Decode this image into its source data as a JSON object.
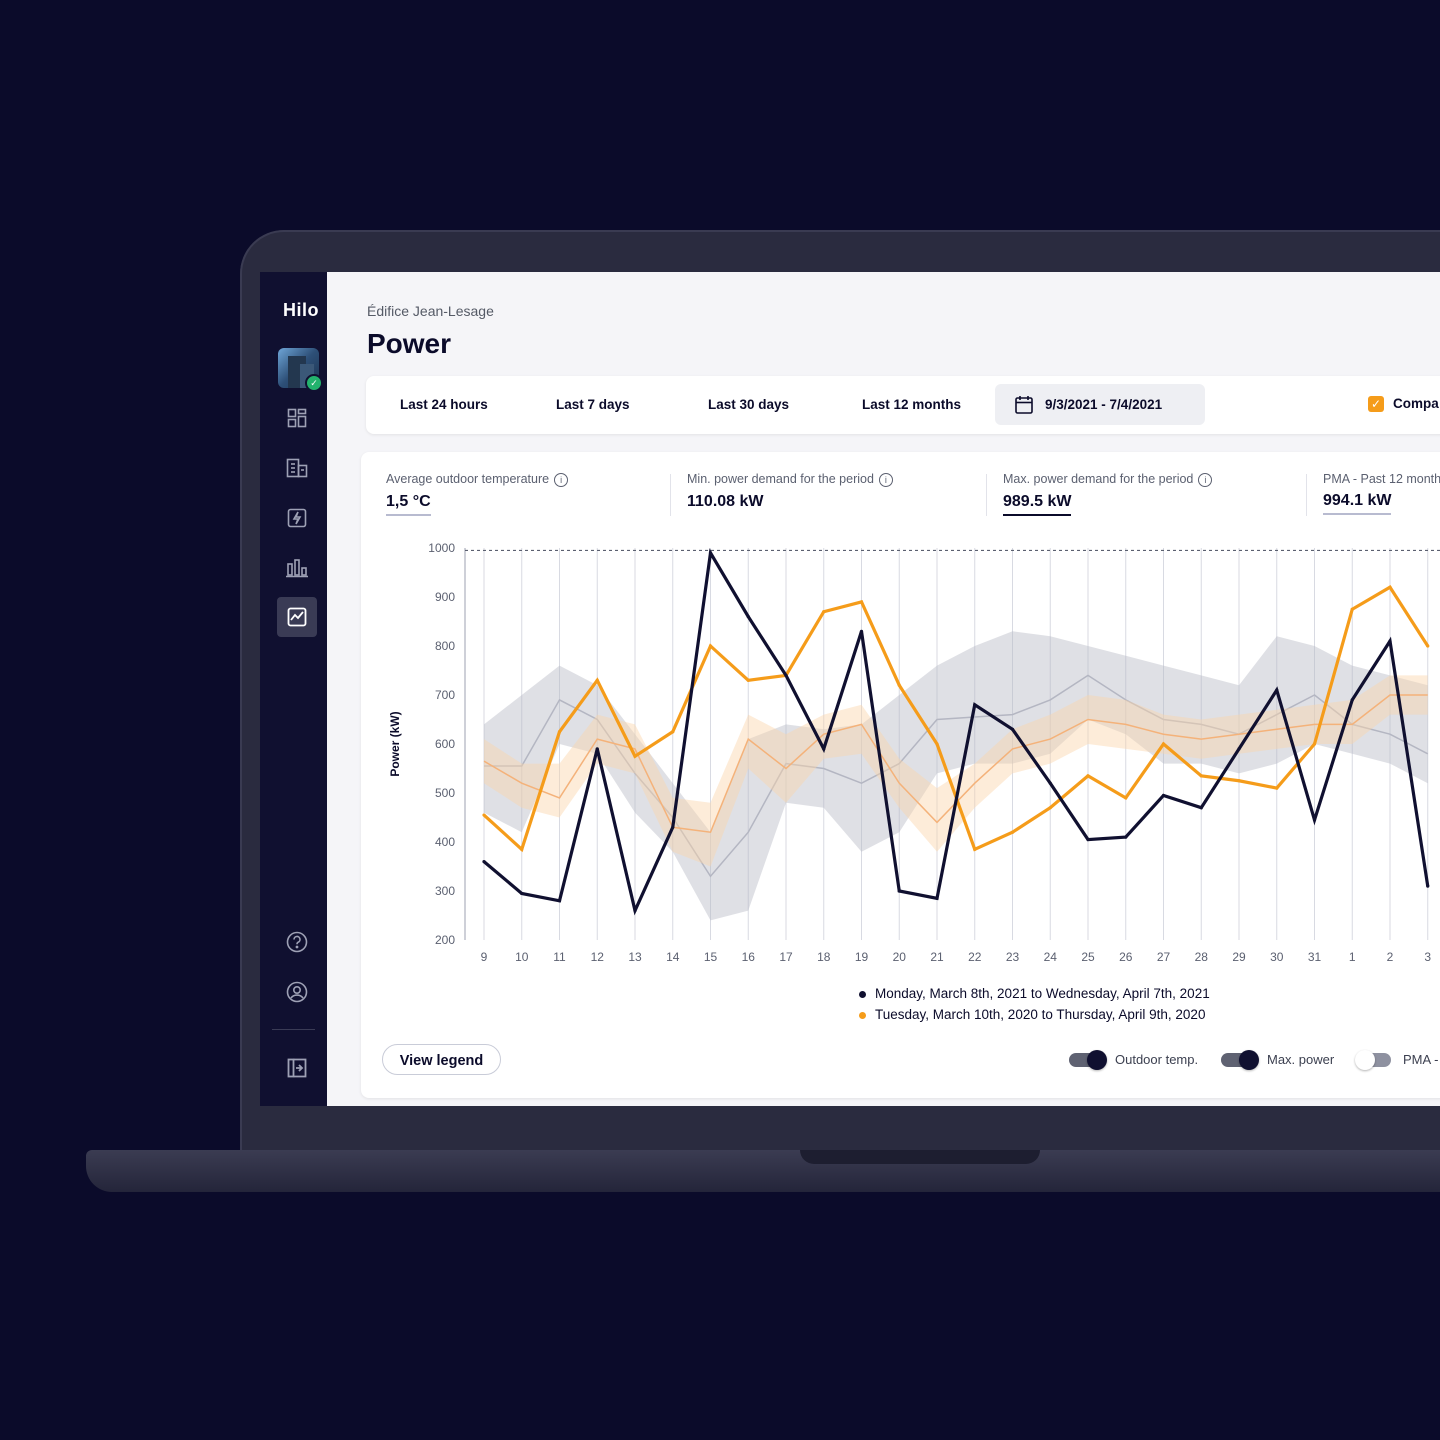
{
  "app": {
    "logo_text": "Hilo",
    "accent_color": "#f59c1a",
    "dark_color": "#101030"
  },
  "sidebar": {
    "items": [
      {
        "name": "dashboard",
        "icon": "grid-icon"
      },
      {
        "name": "buildings",
        "icon": "building-icon"
      },
      {
        "name": "energy",
        "icon": "lightning-icon"
      },
      {
        "name": "reports",
        "icon": "bar-chart-icon"
      },
      {
        "name": "power",
        "icon": "line-chart-icon",
        "active": true
      }
    ],
    "bottom_items": [
      {
        "name": "help",
        "icon": "help-icon"
      },
      {
        "name": "account",
        "icon": "user-icon"
      },
      {
        "name": "logout",
        "icon": "logout-icon"
      }
    ]
  },
  "header": {
    "breadcrumb": "Édifice Jean-Lesage",
    "title": "Power"
  },
  "filters": {
    "tabs": [
      "Last 24 hours",
      "Last 7 days",
      "Last 30 days",
      "Last 12 months"
    ],
    "date_range": "9/3/2021 - 7/4/2021",
    "compare_label": "Compa",
    "compare_checked": true
  },
  "stats": [
    {
      "label": "Average outdoor temperature",
      "value": "1,5 °C"
    },
    {
      "label": "Min. power demand for the period",
      "value": "110.08 kW"
    },
    {
      "label": "Max. power demand for the period",
      "value": "989.5 kW"
    },
    {
      "label": "PMA - Past 12 month",
      "value": "994.1 kW"
    }
  ],
  "chart_data": {
    "type": "line",
    "ylabel": "Power (kW)",
    "xlabel": "",
    "ylim": [
      200,
      1000
    ],
    "yticks": [
      1000,
      900,
      800,
      700,
      600,
      500,
      400,
      300,
      200
    ],
    "x": [
      "9",
      "10",
      "11",
      "12",
      "13",
      "14",
      "15",
      "16",
      "17",
      "18",
      "19",
      "20",
      "21",
      "22",
      "23",
      "24",
      "25",
      "26",
      "27",
      "28",
      "29",
      "30",
      "31",
      "1",
      "2",
      "3"
    ],
    "reference_line": {
      "value": 995,
      "style": "dashed"
    },
    "series": [
      {
        "name": "Monday, March 8th, 2021 to Wednesday, April 7th, 2021",
        "color": "#101030",
        "values": [
          360,
          295,
          280,
          590,
          260,
          430,
          990,
          860,
          740,
          590,
          830,
          300,
          285,
          680,
          630,
          520,
          405,
          410,
          495,
          470,
          590,
          710,
          445,
          690,
          810,
          310
        ]
      },
      {
        "name": "Tuesday, March 10th, 2020 to Thursday, April 9th, 2020",
        "color": "#f59c1a",
        "values": [
          455,
          385,
          625,
          730,
          575,
          625,
          800,
          730,
          740,
          870,
          890,
          720,
          600,
          385,
          420,
          470,
          535,
          490,
          600,
          535,
          525,
          510,
          600,
          875,
          920,
          800
        ]
      }
    ],
    "bands": [
      {
        "color": "#b8bac6",
        "center": [
          555,
          555,
          690,
          650,
          540,
          450,
          330,
          420,
          560,
          550,
          520,
          560,
          650,
          655,
          660,
          690,
          740,
          690,
          650,
          640,
          620,
          660,
          700,
          640,
          620,
          580
        ],
        "upper": [
          640,
          700,
          760,
          720,
          620,
          520,
          420,
          610,
          640,
          630,
          640,
          700,
          760,
          800,
          830,
          820,
          800,
          780,
          760,
          740,
          720,
          820,
          800,
          760,
          740,
          720
        ],
        "lower": [
          460,
          420,
          600,
          580,
          460,
          380,
          240,
          260,
          480,
          470,
          380,
          420,
          540,
          560,
          560,
          580,
          650,
          620,
          560,
          560,
          540,
          560,
          600,
          580,
          560,
          520
        ]
      },
      {
        "color": "#fbd5ab",
        "center": [
          565,
          520,
          490,
          610,
          590,
          430,
          420,
          610,
          550,
          620,
          640,
          520,
          440,
          520,
          590,
          610,
          650,
          640,
          620,
          610,
          620,
          630,
          640,
          640,
          700,
          700
        ],
        "upper": [
          610,
          560,
          560,
          660,
          640,
          490,
          480,
          660,
          620,
          660,
          680,
          570,
          510,
          560,
          630,
          660,
          700,
          690,
          660,
          650,
          660,
          670,
          680,
          690,
          740,
          740
        ],
        "lower": [
          520,
          470,
          450,
          560,
          540,
          380,
          350,
          550,
          480,
          570,
          580,
          470,
          380,
          470,
          540,
          560,
          600,
          590,
          580,
          570,
          580,
          590,
          600,
          600,
          660,
          660
        ]
      }
    ]
  },
  "legend": {
    "view_button": "View legend",
    "toggles": [
      {
        "label": "Outdoor temp.",
        "on": true
      },
      {
        "label": "Max. power",
        "on": true
      },
      {
        "label": "PMA -",
        "on": false
      }
    ]
  }
}
